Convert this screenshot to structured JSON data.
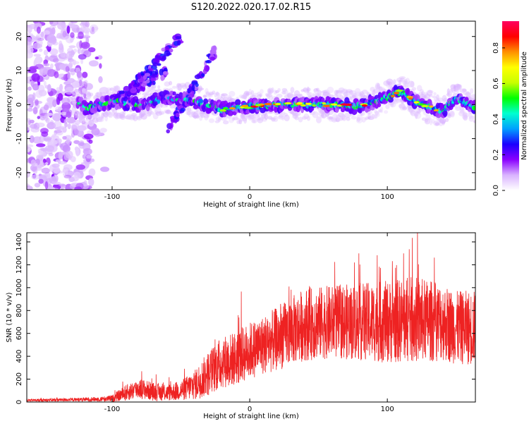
{
  "chart_data": [
    {
      "type": "heatmap",
      "title": "S120.2022.020.17.02.R15",
      "xlabel": "Height of straight line (km)",
      "ylabel": "Frequency (Hz)",
      "xlim": [
        -162,
        164
      ],
      "ylim": [
        -25,
        24.5
      ],
      "xticks": [
        -100,
        0,
        100
      ],
      "yticks": [
        -20,
        -10,
        0,
        10,
        20
      ],
      "colorbar": {
        "label": "Normalized spectral amplitude",
        "range": [
          0.0,
          0.95
        ],
        "ticks": [
          "0.0",
          "0.2",
          "0.4",
          "0.6",
          "0.8"
        ],
        "colormap": [
          "#ffffff",
          "#d9b3ff",
          "#8a00ff",
          "#1a00ff",
          "#00a0ff",
          "#00ffd0",
          "#00ff00",
          "#c8ff00",
          "#ffff00",
          "#ff9000",
          "#ff0000",
          "#ff0060"
        ]
      },
      "ridge": {
        "description_points": [
          {
            "x": -120,
            "y": -1.5
          },
          {
            "x": -100,
            "y": 1
          },
          {
            "x": -80,
            "y": 0
          },
          {
            "x": -60,
            "y": 2
          },
          {
            "x": -40,
            "y": 1
          },
          {
            "x": -20,
            "y": -1.5
          },
          {
            "x": 0,
            "y": -0.5
          },
          {
            "x": 20,
            "y": 0
          },
          {
            "x": 40,
            "y": 0
          },
          {
            "x": 60,
            "y": 0
          },
          {
            "x": 80,
            "y": -0.5
          },
          {
            "x": 100,
            "y": 2
          },
          {
            "x": 110,
            "y": 4
          },
          {
            "x": 120,
            "y": 1
          },
          {
            "x": 140,
            "y": -2
          },
          {
            "x": 150,
            "y": 2
          },
          {
            "x": 164,
            "y": -1
          }
        ],
        "branches": [
          {
            "x": [
              -100,
              -60
            ],
            "y": [
              1,
              10
            ]
          },
          {
            "x": [
              -90,
              -50
            ],
            "y": [
              3,
              20
            ]
          },
          {
            "x": [
              -60,
              -25
            ],
            "y": [
              -8,
              16
            ]
          }
        ]
      }
    },
    {
      "type": "line",
      "xlabel": "Height of straight line (km)",
      "ylabel": "SNR (10 * v/v)",
      "xlim": [
        -162,
        164
      ],
      "ylim": [
        0,
        1480
      ],
      "xticks": [
        -100,
        0,
        100
      ],
      "yticks": [
        0,
        200,
        400,
        600,
        800,
        1000,
        1200,
        1400
      ],
      "series": [
        {
          "color": "#ee2222",
          "envelope": {
            "x": [
              -162,
              -130,
              -110,
              -100,
              -90,
              -80,
              -70,
              -60,
              -50,
              -40,
              -30,
              -20,
              -10,
              0,
              10,
              20,
              30,
              40,
              60,
              80,
              100,
              120,
              140,
              150,
              164
            ],
            "y": [
              15,
              20,
              25,
              30,
              80,
              120,
              90,
              80,
              100,
              150,
              250,
              350,
              380,
              450,
              500,
              550,
              620,
              680,
              700,
              700,
              700,
              720,
              700,
              650,
              650
            ],
            "amp": [
              12,
              15,
              20,
              30,
              70,
              90,
              80,
              70,
              90,
              130,
              200,
              230,
              240,
              250,
              260,
              280,
              300,
              320,
              320,
              340,
              360,
              380,
              340,
              320,
              330
            ]
          }
        }
      ]
    }
  ]
}
